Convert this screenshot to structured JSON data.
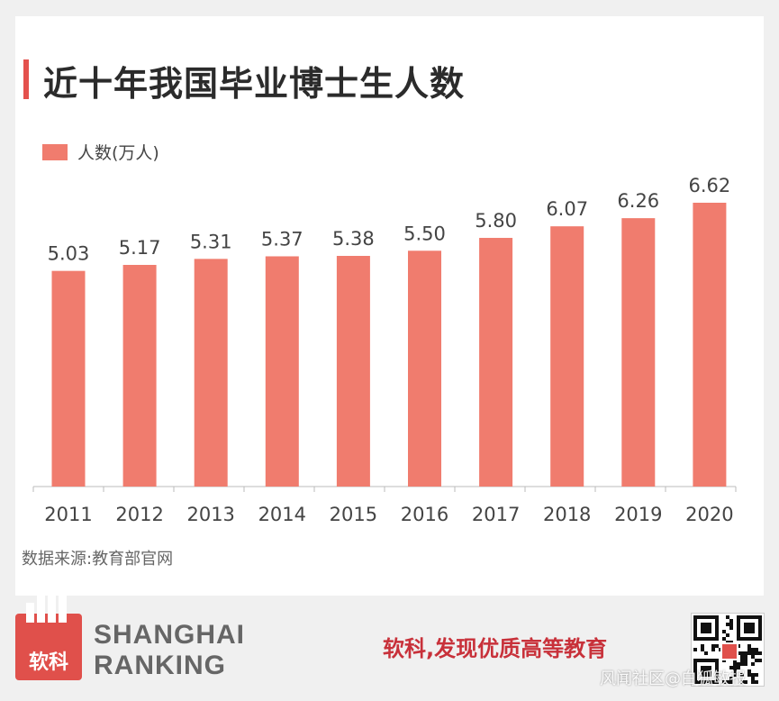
{
  "title": "近十年我国毕业博士生人数",
  "legend": "人数(万人)",
  "source": "数据来源:教育部官网",
  "colors": {
    "bar": "#f07c6e",
    "accent": "#e4514d",
    "slogan": "#c8313a"
  },
  "chart_data": {
    "type": "bar",
    "categories": [
      "2011",
      "2012",
      "2013",
      "2014",
      "2015",
      "2016",
      "2017",
      "2018",
      "2019",
      "2020"
    ],
    "series": [
      {
        "name": "人数(万人)",
        "values": [
          5.03,
          5.17,
          5.31,
          5.37,
          5.38,
          5.5,
          5.8,
          6.07,
          6.26,
          6.62
        ]
      }
    ],
    "data_labels": [
      "5.03",
      "5.17",
      "5.31",
      "5.37",
      "5.38",
      "5.50",
      "5.80",
      "6.07",
      "6.26",
      "6.62"
    ],
    "ylim": [
      0,
      6.62
    ],
    "grid": false,
    "legend_position": "top-left"
  },
  "footer": {
    "brand_line1": "SHANGHAI",
    "brand_line2": "RANKING",
    "logo_text": "软科",
    "slogan": "软科,发现优质高等教育",
    "qr_icon": "qr-code-icon"
  },
  "watermark": "风闻社区@白狐敏报"
}
